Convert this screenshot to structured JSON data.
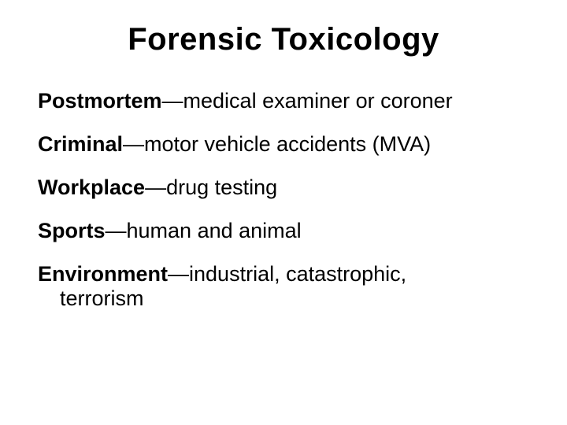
{
  "title": "Forensic Toxicology",
  "items": [
    {
      "term": "Postmortem",
      "desc": "—medical examiner or coroner"
    },
    {
      "term": "Criminal",
      "desc": "—motor vehicle accidents (MVA)"
    },
    {
      "term": "Workplace",
      "desc": "—drug testing"
    },
    {
      "term": "Sports",
      "desc": "—human and animal"
    },
    {
      "term": "Environment",
      "desc": "—industrial, catastrophic, terrorism"
    }
  ],
  "style": {
    "background_color": "#ffffff",
    "text_color": "#000000",
    "title_fontsize_pt": 30,
    "body_fontsize_pt": 20,
    "font_family": "Arial"
  }
}
